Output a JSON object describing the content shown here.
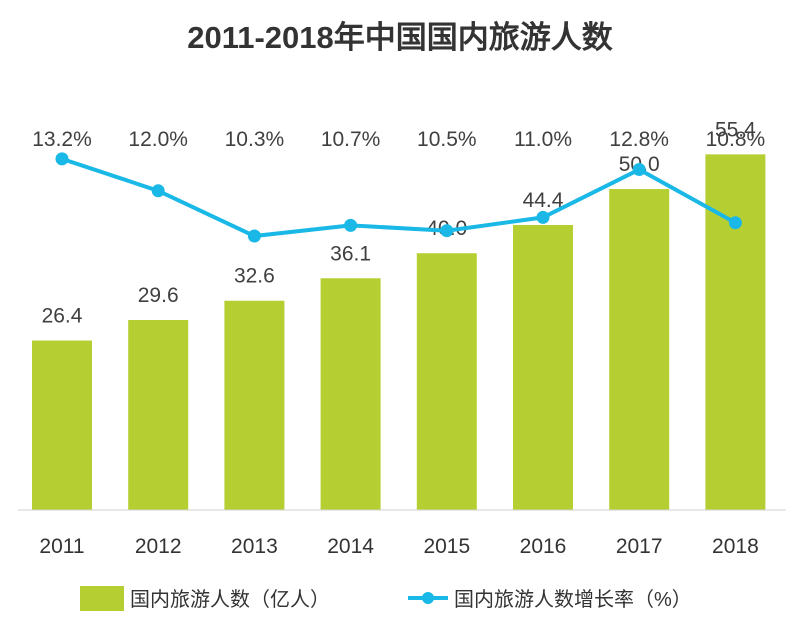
{
  "chart_data": {
    "type": "bar",
    "title": "2011-2018年中国国内旅游人数",
    "categories": [
      "2011",
      "2012",
      "2013",
      "2014",
      "2015",
      "2016",
      "2017",
      "2018"
    ],
    "series": [
      {
        "name": "国内旅游人数（亿人）",
        "type": "bar",
        "values": [
          26.4,
          29.6,
          32.6,
          36.1,
          40.0,
          44.4,
          50.0,
          55.4
        ],
        "labels": [
          "26.4",
          "29.6",
          "32.6",
          "36.1",
          "40.0",
          "44.4",
          "50.0",
          "55.4"
        ],
        "color": "#b5cf32"
      },
      {
        "name": "国内旅游人数增长率（%）",
        "type": "line",
        "values": [
          13.2,
          12.0,
          10.3,
          10.7,
          10.5,
          11.0,
          12.8,
          10.8
        ],
        "labels": [
          "13.2%",
          "12.0%",
          "10.3%",
          "10.7%",
          "10.5%",
          "11.0%",
          "12.8%",
          "10.8%"
        ],
        "color": "#19b8e6"
      }
    ],
    "bar_ylim": [
      0,
      62
    ],
    "line_ylim": [
      0,
      100
    ],
    "legend_position": "bottom",
    "grid": false
  }
}
